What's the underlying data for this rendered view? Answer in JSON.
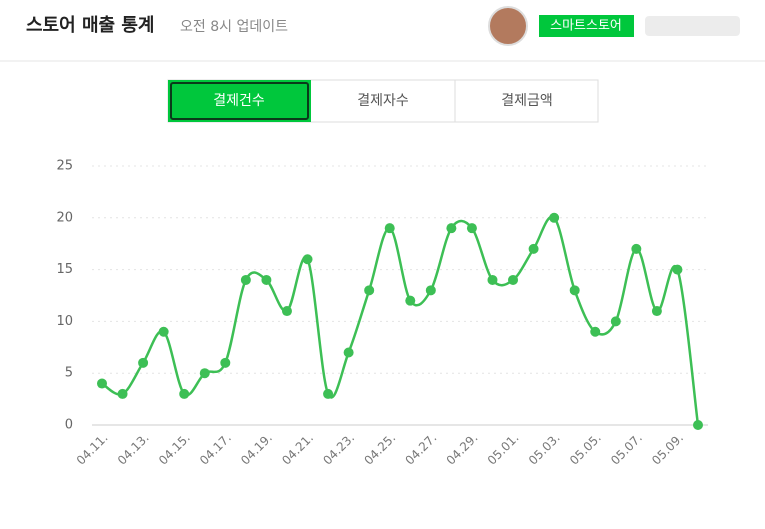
{
  "header": {
    "title": "스토어 매출 통계",
    "subtitle": "오전 8시 업데이트",
    "badge": "스마트스토어"
  },
  "tabs": [
    "결제건수",
    "결제자수",
    "결제금액"
  ],
  "chart_data": {
    "type": "line",
    "categories": [
      "04.11.",
      null,
      "04.13.",
      null,
      "04.15.",
      null,
      "04.17.",
      null,
      "04.19.",
      null,
      "04.21.",
      null,
      "04.23.",
      null,
      "04.25.",
      null,
      "04.27.",
      null,
      "04.29.",
      null,
      "05.01.",
      null,
      "05.03.",
      null,
      "05.05.",
      null,
      "05.07.",
      null,
      "05.09.",
      null
    ],
    "values": [
      4,
      3,
      6,
      9,
      3,
      5,
      6,
      14,
      14,
      11,
      16,
      3,
      7,
      13,
      19,
      12,
      13,
      19,
      19,
      14,
      14,
      17,
      20,
      13,
      9,
      10,
      17,
      11,
      15,
      0
    ],
    "color": "#3dbf55",
    "ylim": [
      0,
      25
    ],
    "yticks": [
      0,
      5,
      10,
      15,
      20,
      25
    ],
    "grid": true
  }
}
